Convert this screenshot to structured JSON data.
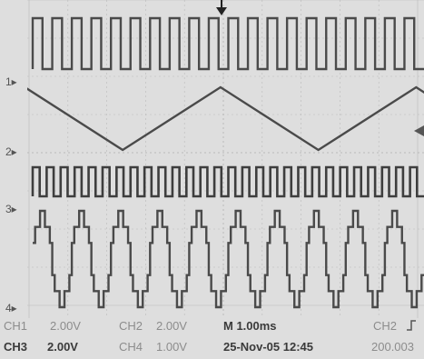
{
  "colors": {
    "background": "#dedede",
    "grid": "#b9b9b9",
    "trace": "#4a4a4a",
    "text": "#444444"
  },
  "channel_markers": [
    "1▸",
    "2▸",
    "3▸",
    "4▸"
  ],
  "icons": {
    "trigger_position": "trigger-position-icon",
    "trigger_level": "trigger-level-icon",
    "trigger_slope": "rising-edge-icon"
  },
  "readouts": {
    "ch1": "CH1",
    "ch1_scale": "2.00V",
    "ch2": "CH2",
    "ch2_scale": "2.00V",
    "timebase": "M 1.00ms",
    "trigger_source": "CH2",
    "ch3": "CH3",
    "ch3_scale": "2.00V",
    "ch4": "CH4",
    "ch4_scale": "1.00V",
    "timestamp": "25-Nov-05 12:45",
    "trigger_level": "200.003"
  },
  "chart_data": {
    "type": "line",
    "x_unit": "ms",
    "x_per_division": 1.0,
    "series": [
      {
        "name": "CH1",
        "shape": "square",
        "periods": 20,
        "duty": 0.5
      },
      {
        "name": "CH2",
        "shape": "triangle",
        "periods": 2
      },
      {
        "name": "CH3",
        "shape": "square",
        "periods": 28,
        "duty": 0.5
      },
      {
        "name": "CH4",
        "shape": "stepped-sine",
        "periods": 10,
        "levels": 7
      }
    ]
  }
}
